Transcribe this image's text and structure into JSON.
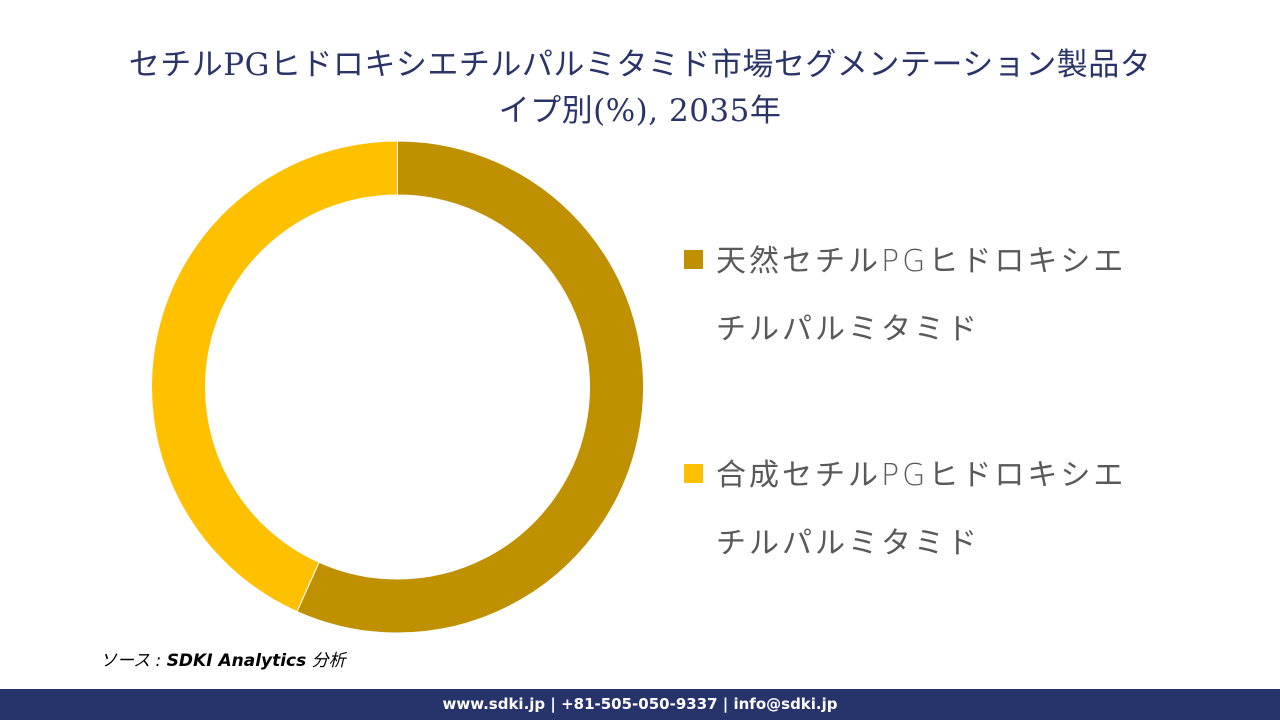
{
  "header": {
    "title_line1": "セチルPGヒドロキシエチルパルミタミド市場セグメンテーション製品タ",
    "title_line2": "イプ別(%), 2035年"
  },
  "legend": {
    "items": [
      {
        "label_line1": "天然セチルPGヒドロキシエ",
        "label_line2": "チルパルミタミド",
        "color": "#bf9000"
      },
      {
        "label_line1": "合成セチルPGヒドロキシエ",
        "label_line2": "チルパルミタミド",
        "color": "#ffc000"
      }
    ]
  },
  "source": {
    "prefix": "ソース : ",
    "org": "SDKI Analytics",
    "suffix": " 分析"
  },
  "footer": {
    "contact": "www.sdki.jp | +81-505-050-9337 | info@sdki.jp"
  },
  "colors": {
    "title": "#2a3468",
    "footer_bg": "#27336b",
    "natural": "#bf9000",
    "synthetic": "#ffc000"
  },
  "chart_data": {
    "type": "pie",
    "subtype": "donut",
    "title": "セチルPGヒドロキシエチルパルミタミド市場セグメンテーション製品タイプ別(%), 2035年",
    "categories": [
      "天然セチルPGヒドロキシエチルパルミタミド",
      "合成セチルPGヒドロキシエチルパルミタミド"
    ],
    "values": [
      56.7,
      43.3
    ],
    "colors": [
      "#bf9000",
      "#ffc000"
    ],
    "start_angle_deg": 0,
    "direction": "clockwise",
    "data_labels": false,
    "legend_position": "right",
    "unit": "%"
  }
}
